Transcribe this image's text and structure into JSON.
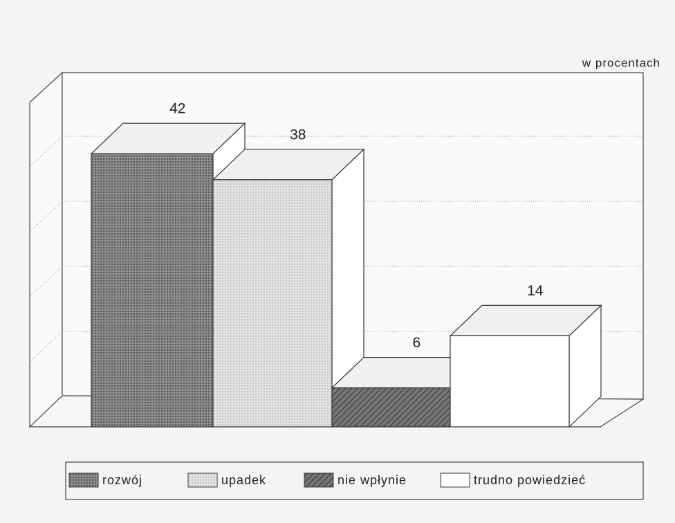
{
  "chart_data": {
    "type": "bar3d",
    "unit_label": "w procentach",
    "categories": [
      "rozwój",
      "upadek",
      "nie wpłynie",
      "trudno powiedzieć"
    ],
    "values": [
      42,
      38,
      6,
      14
    ],
    "colors": [
      "#8c8c8c",
      "#e2e2e2",
      "#767676",
      "#ffffff"
    ],
    "ylim": [
      0,
      50
    ],
    "yticks": [
      10,
      20,
      30,
      40
    ],
    "grid": true
  }
}
